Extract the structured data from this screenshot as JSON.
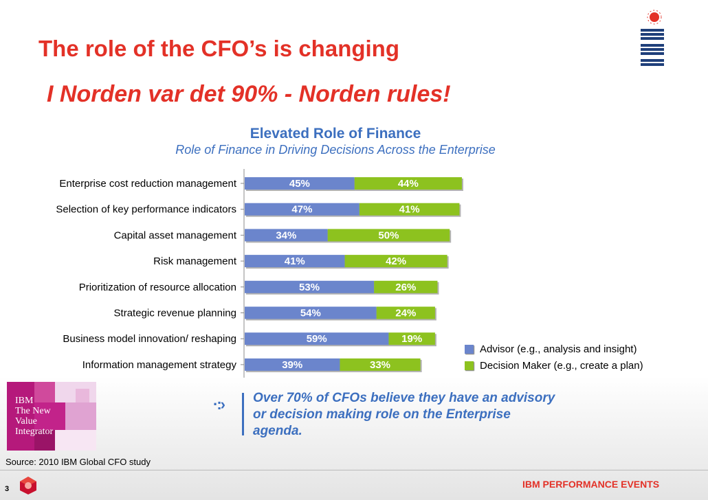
{
  "slide": {
    "title": "The role of the CFO’s is changing",
    "subtitle": "I Norden var det 90% - Norden rules!",
    "callout": "Over 70% of CFOs believe they have an advisory or decision making role on the Enterprise agenda.",
    "book_cover_text": "IBM\nThe New\nValue\nIntegrator",
    "source": "Source:  2010 IBM Global CFO study",
    "page_number": "3",
    "footer": "IBM PERFORMANCE EVENTS",
    "logo_icon": "ibm-logo-icon",
    "colors": {
      "title": "#e33127",
      "accent": "#3c6fbf"
    }
  },
  "chart_data": {
    "type": "bar",
    "orientation": "horizontal",
    "stacked": true,
    "title": "Elevated Role of Finance",
    "subtitle": "Role of Finance in Driving Decisions Across the Enterprise",
    "categories": [
      "Enterprise cost  reduction management",
      "Selection of key performance indicators",
      "Capital asset management",
      "Risk management",
      "Prioritization of resource allocation",
      "Strategic revenue planning",
      "Business model innovation/ reshaping",
      "Information management strategy"
    ],
    "series": [
      {
        "name": "Advisor (e.g., analysis and insight)",
        "values": [
          45,
          47,
          34,
          41,
          53,
          54,
          59,
          39
        ],
        "color": "#6b85cc"
      },
      {
        "name": "Decision Maker (e.g., create a plan)",
        "values": [
          44,
          41,
          50,
          42,
          26,
          24,
          19,
          33
        ],
        "color": "#8dc21f"
      }
    ],
    "value_format": "percent",
    "xlim": [
      0,
      100
    ],
    "grid": false,
    "legend_position": "bottom-right"
  }
}
